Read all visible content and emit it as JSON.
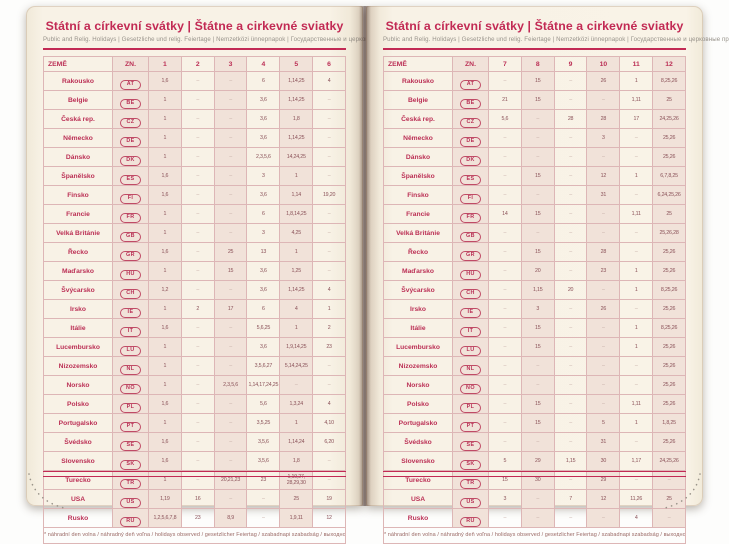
{
  "book": {
    "title": "Státní a církevní svátky | Štátne a cirkevné sviatky",
    "subtitle": "Public and Relig. Holidays | Gesetzliche und relig. Feiertage | Nemzetközi ünnepnapok | Государственные и церковные праздники",
    "footnote": "* náhradní den volna / náhradný deň voľna / holidays observed / gesetzlicher Feiertag / szabadnapi szabadság / выходной день",
    "left_columns": [
      "ZEMĚ",
      "ZN.",
      "1",
      "2",
      "3",
      "4",
      "5",
      "6"
    ],
    "right_columns": [
      "ZEMĚ",
      "ZN.",
      "7",
      "8",
      "9",
      "10",
      "11",
      "12"
    ],
    "countries": [
      {
        "name": "Rakousko",
        "code": "AT",
        "left": [
          "1,6",
          "–",
          "–",
          "6",
          "1,14,25",
          "4"
        ],
        "right": [
          "–",
          "15",
          "–",
          "26",
          "1",
          "8,25,26"
        ]
      },
      {
        "name": "Belgie",
        "code": "BE",
        "left": [
          "1",
          "–",
          "–",
          "3,6",
          "1,14,25",
          "–"
        ],
        "right": [
          "21",
          "15",
          "–",
          "–",
          "1,11",
          "25"
        ]
      },
      {
        "name": "Česká rep.",
        "code": "CZ",
        "left": [
          "1",
          "–",
          "–",
          "3,6",
          "1,8",
          "–"
        ],
        "right": [
          "5,6",
          "–",
          "28",
          "28",
          "17",
          "24,25,26"
        ]
      },
      {
        "name": "Německo",
        "code": "DE",
        "left": [
          "1",
          "–",
          "–",
          "3,6",
          "1,14,25",
          "–"
        ],
        "right": [
          "–",
          "–",
          "–",
          "3",
          "–",
          "25,26"
        ]
      },
      {
        "name": "Dánsko",
        "code": "DK",
        "left": [
          "1",
          "–",
          "–",
          "2,3,5,6",
          "14,24,25",
          "–"
        ],
        "right": [
          "–",
          "–",
          "–",
          "–",
          "–",
          "25,26"
        ]
      },
      {
        "name": "Španělsko",
        "code": "ES",
        "left": [
          "1,6",
          "–",
          "–",
          "3",
          "1",
          "–"
        ],
        "right": [
          "–",
          "15",
          "–",
          "12",
          "1",
          "6,7,8,25"
        ]
      },
      {
        "name": "Finsko",
        "code": "FI",
        "left": [
          "1,6",
          "–",
          "–",
          "3,6",
          "1,14",
          "19,20"
        ],
        "right": [
          "–",
          "–",
          "–",
          "31",
          "–",
          "6,24,25,26"
        ]
      },
      {
        "name": "Francie",
        "code": "FR",
        "left": [
          "1",
          "–",
          "–",
          "6",
          "1,8,14,25",
          "–"
        ],
        "right": [
          "14",
          "15",
          "–",
          "–",
          "1,11",
          "25"
        ]
      },
      {
        "name": "Velká Británie",
        "code": "GB",
        "left": [
          "1",
          "–",
          "–",
          "3",
          "4,25",
          "–"
        ],
        "right": [
          "–",
          "–",
          "–",
          "–",
          "–",
          "25,26,28"
        ]
      },
      {
        "name": "Řecko",
        "code": "GR",
        "left": [
          "1,6",
          "–",
          "25",
          "13",
          "1",
          "–"
        ],
        "right": [
          "–",
          "15",
          "–",
          "28",
          "–",
          "25,26"
        ]
      },
      {
        "name": "Maďarsko",
        "code": "HU",
        "left": [
          "1",
          "–",
          "15",
          "3,6",
          "1,25",
          "–"
        ],
        "right": [
          "–",
          "20",
          "–",
          "23",
          "1",
          "25,26"
        ]
      },
      {
        "name": "Švýcarsko",
        "code": "CH",
        "left": [
          "1,2",
          "–",
          "–",
          "3,6",
          "1,14,25",
          "4"
        ],
        "right": [
          "–",
          "1,15",
          "20",
          "–",
          "1",
          "8,25,26"
        ]
      },
      {
        "name": "Irsko",
        "code": "IE",
        "left": [
          "1",
          "2",
          "17",
          "6",
          "4",
          "1"
        ],
        "right": [
          "–",
          "3",
          "–",
          "26",
          "–",
          "25,26"
        ]
      },
      {
        "name": "Itálie",
        "code": "IT",
        "left": [
          "1,6",
          "–",
          "–",
          "5,6,25",
          "1",
          "2"
        ],
        "right": [
          "–",
          "15",
          "–",
          "–",
          "1",
          "8,25,26"
        ]
      },
      {
        "name": "Lucembursko",
        "code": "LU",
        "left": [
          "1",
          "–",
          "–",
          "3,6",
          "1,9,14,25",
          "23"
        ],
        "right": [
          "–",
          "15",
          "–",
          "–",
          "1",
          "25,26"
        ]
      },
      {
        "name": "Nizozemsko",
        "code": "NL",
        "left": [
          "1",
          "–",
          "–",
          "3,5,6,27",
          "5,14,24,25",
          "–"
        ],
        "right": [
          "–",
          "–",
          "–",
          "–",
          "–",
          "25,26"
        ]
      },
      {
        "name": "Norsko",
        "code": "NO",
        "left": [
          "1",
          "–",
          "2,3,5,6",
          "1,14,17,24,25",
          "–",
          "–"
        ],
        "right": [
          "–",
          "–",
          "–",
          "–",
          "–",
          "25,26"
        ]
      },
      {
        "name": "Polsko",
        "code": "PL",
        "left": [
          "1,6",
          "–",
          "–",
          "5,6",
          "1,3,24",
          "4"
        ],
        "right": [
          "–",
          "15",
          "–",
          "–",
          "1,11",
          "25,26"
        ]
      },
      {
        "name": "Portugalsko",
        "code": "PT",
        "left": [
          "1",
          "–",
          "–",
          "3,5,25",
          "1",
          "4,10"
        ],
        "right": [
          "–",
          "15",
          "–",
          "5",
          "1",
          "1,8,25"
        ]
      },
      {
        "name": "Švédsko",
        "code": "SE",
        "left": [
          "1,6",
          "–",
          "–",
          "3,5,6",
          "1,14,24",
          "6,20"
        ],
        "right": [
          "–",
          "–",
          "–",
          "31",
          "–",
          "25,26"
        ]
      },
      {
        "name": "Slovensko",
        "code": "SK",
        "left": [
          "1,6",
          "–",
          "–",
          "3,5,6",
          "1,8",
          "–"
        ],
        "right": [
          "5",
          "29",
          "1,15",
          "30",
          "1,17",
          "24,25,26"
        ]
      },
      {
        "name": "Turecko",
        "code": "TR",
        "left": [
          "1",
          "–",
          "20,21,23",
          "23",
          "1,19,27,\n28,29,30",
          "–"
        ],
        "right": [
          "15",
          "30",
          "–",
          "29",
          "–",
          "–"
        ]
      },
      {
        "name": "USA",
        "code": "US",
        "left": [
          "1,19",
          "16",
          "–",
          "–",
          "25",
          "19"
        ],
        "right": [
          "3",
          "–",
          "7",
          "12",
          "11,26",
          "25"
        ]
      },
      {
        "name": "Rusko",
        "code": "RU",
        "left": [
          "1,2,5,6,7,8",
          "23",
          "8,9",
          "–",
          "1,9,11",
          "12"
        ],
        "right": [
          "–",
          "–",
          "–",
          "–",
          "4",
          "–"
        ]
      }
    ]
  },
  "colors": {
    "accent": "#c22a54",
    "country_text": "#bb3055",
    "value_text": "#8a5158",
    "dash": "#c3aaa4",
    "column_tint": "#f1e2d9",
    "page_background": "#f7f1e4",
    "border": "#ddb6b6"
  }
}
